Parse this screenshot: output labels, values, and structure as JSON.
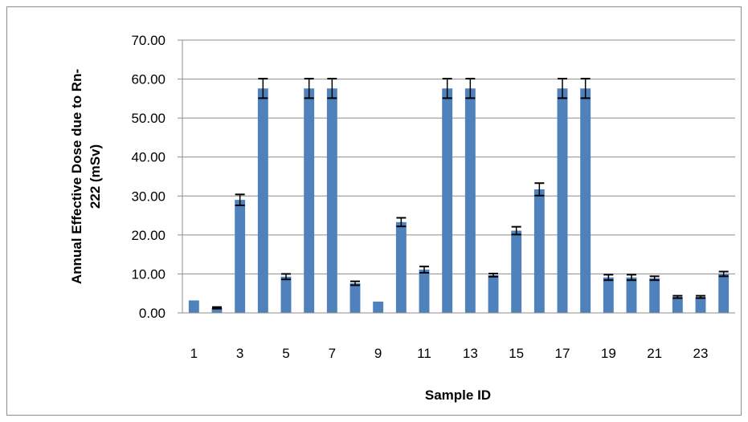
{
  "chart_data": {
    "type": "bar",
    "title": "",
    "xlabel": "Sample ID",
    "ylabel_lines": [
      "Annual Effective  Dose due to Rn-",
      "222 (mSv)"
    ],
    "ylim": [
      0,
      70
    ],
    "y_ticks": [
      "0.00",
      "10.00",
      "20.00",
      "30.00",
      "40.00",
      "50.00",
      "60.00",
      "70.00"
    ],
    "x_tick_labels": [
      "1",
      "3",
      "5",
      "7",
      "9",
      "11",
      "13",
      "15",
      "17",
      "19",
      "21",
      "23"
    ],
    "categories": [
      1,
      2,
      3,
      4,
      5,
      6,
      7,
      8,
      9,
      10,
      11,
      12,
      13,
      14,
      15,
      16,
      17,
      18,
      19,
      20,
      21,
      22,
      23,
      24
    ],
    "values": [
      3.2,
      1.3,
      29.0,
      57.6,
      9.3,
      57.6,
      57.6,
      7.6,
      2.9,
      23.3,
      11.1,
      57.6,
      57.6,
      9.7,
      21.1,
      31.7,
      57.6,
      57.6,
      9.1,
      9.1,
      8.9,
      4.1,
      4.1,
      10.0
    ],
    "errors": [
      0,
      0.2,
      1.4,
      2.5,
      0.7,
      2.5,
      2.5,
      0.5,
      0,
      1.1,
      0.8,
      2.5,
      2.5,
      0.4,
      1.0,
      1.6,
      2.5,
      2.5,
      0.7,
      0.7,
      0.5,
      0.3,
      0.3,
      0.6
    ],
    "bar_color": "#4f81bd",
    "error_bar_color": "#000000",
    "gridlines": true,
    "legend": "none"
  }
}
